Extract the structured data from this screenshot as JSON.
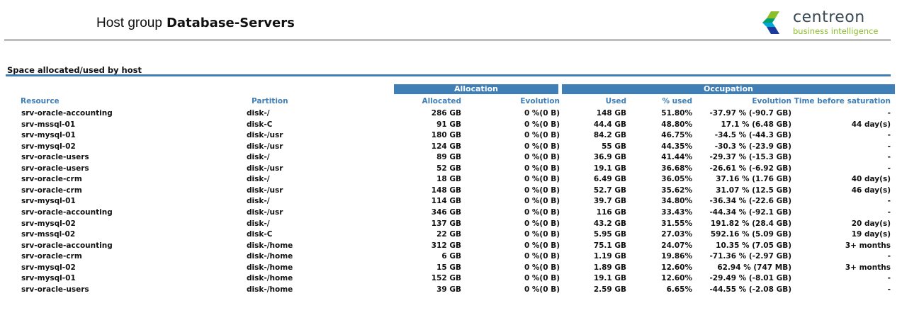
{
  "header": {
    "prefix": "Host group",
    "group_name": "Database-Servers"
  },
  "logo": {
    "name": "centreon",
    "tagline": "business intelligence",
    "colors": [
      "#1a3a9c",
      "#00a6d6",
      "#8cbd2a"
    ]
  },
  "section_title": "Space allocated/used by host",
  "accent_color": "#3f7fb5",
  "groups": {
    "allocation": "Allocation",
    "occupation": "Occupation"
  },
  "columns": [
    "Resource",
    "Partition",
    "Allocated",
    "Evolution",
    "Used",
    "% used",
    "Evolution",
    "Time before saturation"
  ],
  "rows": [
    [
      "srv-oracle-accounting",
      "disk-/",
      "286 GB",
      "0 %(0 B)",
      "148 GB",
      "51.80%",
      "-37.97 % (-90.7 GB)",
      "-"
    ],
    [
      "srv-mssql-01",
      "disk-C",
      "91 GB",
      "0 %(0 B)",
      "44.4 GB",
      "48.80%",
      "17.1 % (6.48 GB)",
      "44 day(s)"
    ],
    [
      "srv-mysql-01",
      "disk-/usr",
      "180 GB",
      "0 %(0 B)",
      "84.2 GB",
      "46.75%",
      "-34.5 % (-44.3 GB)",
      "-"
    ],
    [
      "srv-mysql-02",
      "disk-/usr",
      "124 GB",
      "0 %(0 B)",
      "55 GB",
      "44.35%",
      "-30.3 % (-23.9 GB)",
      "-"
    ],
    [
      "srv-oracle-users",
      "disk-/",
      "89 GB",
      "0 %(0 B)",
      "36.9 GB",
      "41.44%",
      "-29.37 % (-15.3 GB)",
      "-"
    ],
    [
      "srv-oracle-users",
      "disk-/usr",
      "52 GB",
      "0 %(0 B)",
      "19.1 GB",
      "36.68%",
      "-26.61 % (-6.92 GB)",
      "-"
    ],
    [
      "srv-oracle-crm",
      "disk-/",
      "18 GB",
      "0 %(0 B)",
      "6.49 GB",
      "36.05%",
      "37.16 % (1.76 GB)",
      "40 day(s)"
    ],
    [
      "srv-oracle-crm",
      "disk-/usr",
      "148 GB",
      "0 %(0 B)",
      "52.7 GB",
      "35.62%",
      "31.07 % (12.5 GB)",
      "46 day(s)"
    ],
    [
      "srv-mysql-01",
      "disk-/",
      "114 GB",
      "0 %(0 B)",
      "39.7 GB",
      "34.80%",
      "-36.34 % (-22.6 GB)",
      "-"
    ],
    [
      "srv-oracle-accounting",
      "disk-/usr",
      "346 GB",
      "0 %(0 B)",
      "116 GB",
      "33.43%",
      "-44.34 % (-92.1 GB)",
      "-"
    ],
    [
      "srv-mysql-02",
      "disk-/",
      "137 GB",
      "0 %(0 B)",
      "43.2 GB",
      "31.55%",
      "191.82 % (28.4 GB)",
      "20 day(s)"
    ],
    [
      "srv-mssql-02",
      "disk-C",
      "22 GB",
      "0 %(0 B)",
      "5.95 GB",
      "27.03%",
      "592.16 % (5.09 GB)",
      "19 day(s)"
    ],
    [
      "srv-oracle-accounting",
      "disk-/home",
      "312 GB",
      "0 %(0 B)",
      "75.1 GB",
      "24.07%",
      "10.35 % (7.05 GB)",
      "3+ months"
    ],
    [
      "srv-oracle-crm",
      "disk-/home",
      "6 GB",
      "0 %(0 B)",
      "1.19 GB",
      "19.86%",
      "-71.36 % (-2.97 GB)",
      "-"
    ],
    [
      "srv-mysql-02",
      "disk-/home",
      "15 GB",
      "0 %(0 B)",
      "1.89 GB",
      "12.60%",
      "62.94 % (747 MB)",
      "3+ months"
    ],
    [
      "srv-mysql-01",
      "disk-/home",
      "152 GB",
      "0 %(0 B)",
      "19.1 GB",
      "12.60%",
      "-29.49 % (-8.01 GB)",
      "-"
    ],
    [
      "srv-oracle-users",
      "disk-/home",
      "39 GB",
      "0 %(0 B)",
      "2.59 GB",
      "6.65%",
      "-44.55 % (-2.08 GB)",
      "-"
    ]
  ]
}
